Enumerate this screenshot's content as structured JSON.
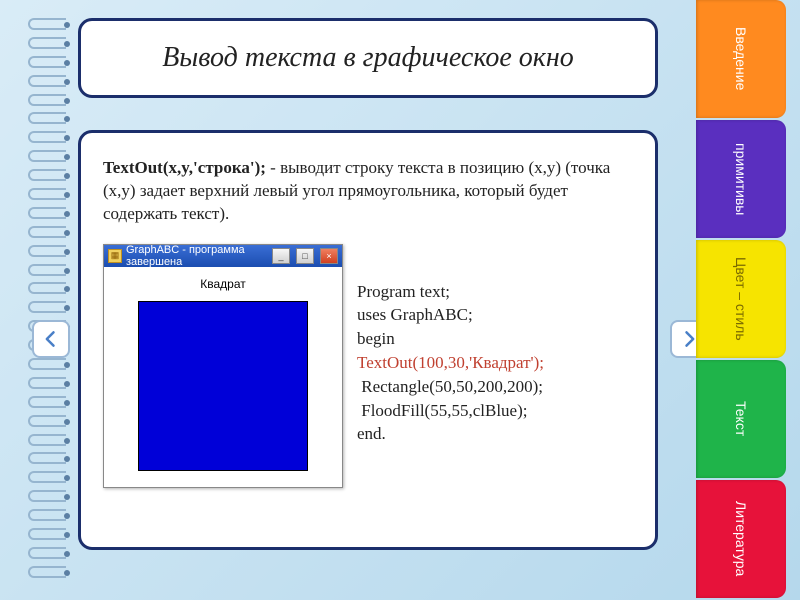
{
  "title": "Вывод текста в графическое окно",
  "desc_bold": "TextOut(x,y,'строка');",
  "desc_rest": " - выводит строку текста в позицию (x,y) (точка (x,y) задает верхний левый угол прямоугольника, который будет содержать текст).",
  "demo_window": {
    "title": "GraphABC - программа завершена",
    "label": "Квадрат",
    "square_color": "#0000d8"
  },
  "code": {
    "l1": "Program text;",
    "l2": "uses GraphABC;",
    "l3": "begin",
    "l4": "TextOut(100,30,'Квадрат');",
    "l5": " Rectangle(50,50,200,200);",
    "l6": " FloodFill(55,55,clBlue);",
    "l7": "end.",
    "l4_color": "#c04030"
  },
  "tabs": [
    {
      "label": "Введение",
      "bg": "#ff8a1f"
    },
    {
      "label": "примитивы",
      "bg": "#5a2fbf"
    },
    {
      "label": "Цвет – стиль",
      "bg": "#f6e400",
      "fg": "#7a6a00"
    },
    {
      "label": "Текст",
      "bg": "#1fb44a"
    },
    {
      "label": "Литература",
      "bg": "#e7123a"
    }
  ],
  "panel_border": "#1b2e6b",
  "bg_gradient_from": "#d9ecf7",
  "bg_gradient_to": "#b5d8ec",
  "spiral_count": 30
}
